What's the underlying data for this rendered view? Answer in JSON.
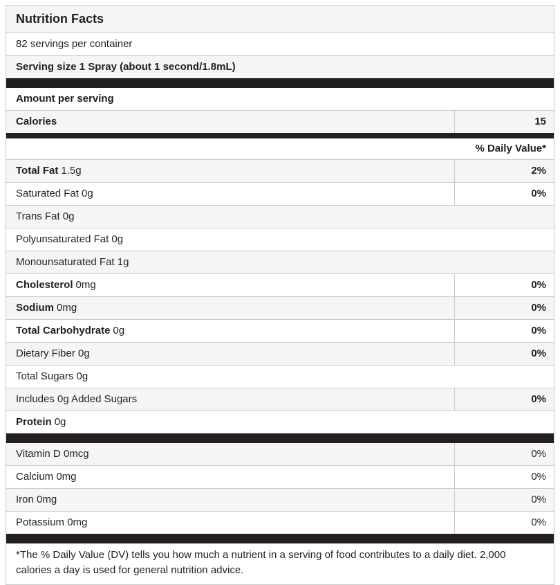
{
  "header": {
    "title": "Nutrition Facts",
    "servings_per_container": "82 servings per container",
    "serving_size": "Serving size 1 Spray (about 1 second/1.8mL)"
  },
  "calories_section": {
    "amount_per_serving": "Amount per serving",
    "calories_label": "Calories",
    "calories_value": "15"
  },
  "daily_value_header": "% Daily Value*",
  "nutrients": [
    {
      "bold": "Total Fat",
      "rest": "1.5g",
      "dv": "2%"
    },
    {
      "bold": "",
      "rest": "Saturated Fat 0g",
      "dv": "0%"
    },
    {
      "bold": "",
      "rest": "Trans Fat 0g",
      "dv": ""
    },
    {
      "bold": "",
      "rest": "Polyunsaturated Fat 0g",
      "dv": ""
    },
    {
      "bold": "",
      "rest": "Monounsaturated Fat 1g",
      "dv": ""
    },
    {
      "bold": "Cholesterol",
      "rest": "0mg",
      "dv": "0%"
    },
    {
      "bold": "Sodium",
      "rest": "0mg",
      "dv": "0%"
    },
    {
      "bold": "Total Carbohydrate",
      "rest": "0g",
      "dv": "0%"
    },
    {
      "bold": "",
      "rest": "Dietary Fiber 0g",
      "dv": "0%"
    },
    {
      "bold": "",
      "rest": "Total Sugars 0g",
      "dv": ""
    },
    {
      "bold": "",
      "rest": "Includes 0g Added Sugars",
      "dv": "0%"
    },
    {
      "bold": "Protein",
      "rest": "0g",
      "dv": ""
    }
  ],
  "micronutrients": [
    {
      "name": "Vitamin D 0mcg",
      "dv": "0%"
    },
    {
      "name": "Calcium 0mg",
      "dv": "0%"
    },
    {
      "name": "Iron 0mg",
      "dv": "0%"
    },
    {
      "name": "Potassium 0mg",
      "dv": "0%"
    }
  ],
  "footnote": "*The % Daily Value (DV) tells you how much a nutrient in a serving of food contributes to a daily diet. 2,000 calories a day is used for general nutrition advice.",
  "colors": {
    "bar": "#231f20",
    "shaded_row": "#f5f5f5",
    "border": "#c9c9c9",
    "text": "#221f20"
  }
}
